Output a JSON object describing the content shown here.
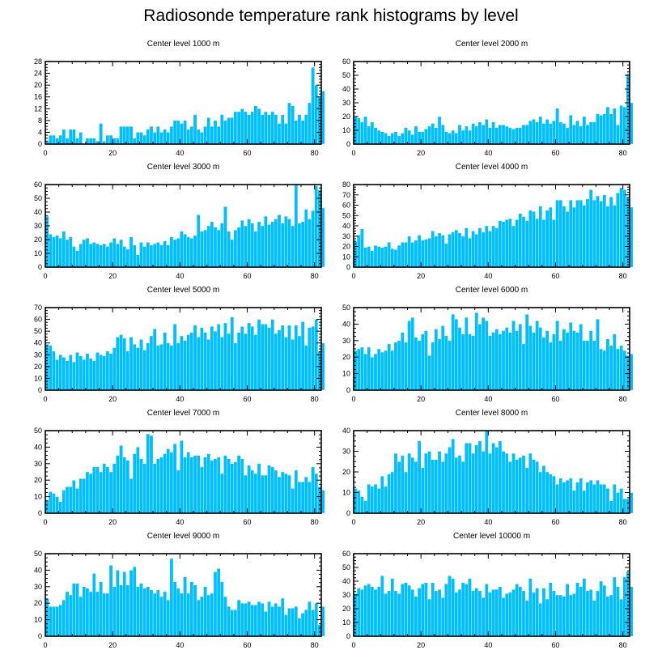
{
  "title": "Radiosonde temperature rank histograms by level",
  "colors": {
    "bar": "#00bfff",
    "axis": "#000000"
  },
  "chart_data": [
    {
      "type": "bar",
      "title": "Center level 1000 m",
      "xlim": [
        0,
        82
      ],
      "xticks": [
        0,
        20,
        40,
        60,
        80
      ],
      "ylim": [
        0,
        28
      ],
      "yticks": [
        0,
        4,
        8,
        12,
        16,
        20,
        24,
        28
      ],
      "values": [
        1,
        3,
        3,
        2,
        3,
        5,
        2,
        5,
        5,
        2,
        4,
        0,
        2,
        2,
        2,
        1,
        7,
        1,
        3,
        3,
        2,
        2,
        6,
        6,
        6,
        6,
        2,
        4,
        4,
        3,
        5,
        6,
        4,
        6,
        4,
        5,
        4,
        6,
        8,
        8,
        7,
        8,
        5,
        6,
        10,
        5,
        4,
        6,
        9,
        6,
        8,
        6,
        10,
        8,
        9,
        9,
        11,
        11,
        12,
        11,
        10,
        11,
        13,
        12,
        10,
        11,
        10,
        11,
        10,
        7,
        10,
        7,
        14,
        13,
        8,
        10,
        8,
        10,
        14,
        26,
        20,
        16,
        18
      ]
    },
    {
      "type": "bar",
      "title": "Center level 2000 m",
      "xlim": [
        0,
        82
      ],
      "xticks": [
        0,
        20,
        40,
        60,
        80
      ],
      "ylim": [
        0,
        60
      ],
      "yticks": [
        0,
        10,
        20,
        30,
        40,
        50,
        60
      ],
      "values": [
        20,
        19,
        16,
        20,
        13,
        16,
        12,
        10,
        9,
        8,
        6,
        8,
        9,
        6,
        8,
        12,
        10,
        7,
        13,
        9,
        9,
        11,
        13,
        15,
        12,
        20,
        14,
        9,
        8,
        10,
        8,
        14,
        10,
        13,
        10,
        15,
        13,
        16,
        14,
        18,
        12,
        16,
        12,
        14,
        14,
        13,
        12,
        11,
        12,
        12,
        14,
        14,
        17,
        18,
        16,
        20,
        15,
        18,
        15,
        17,
        26,
        16,
        15,
        12,
        21,
        14,
        17,
        13,
        20,
        14,
        16,
        16,
        22,
        21,
        22,
        27,
        22,
        26,
        14,
        28,
        27,
        51,
        30
      ]
    },
    {
      "type": "bar",
      "title": "Center level 3000 m",
      "xlim": [
        0,
        82
      ],
      "xticks": [
        0,
        20,
        40,
        60,
        80
      ],
      "ylim": [
        0,
        60
      ],
      "yticks": [
        0,
        10,
        20,
        30,
        40,
        50,
        60
      ],
      "values": [
        37,
        24,
        22,
        23,
        21,
        26,
        20,
        22,
        15,
        12,
        17,
        20,
        21,
        17,
        18,
        17,
        16,
        17,
        15,
        18,
        21,
        17,
        20,
        15,
        13,
        22,
        16,
        9,
        18,
        15,
        18,
        16,
        17,
        18,
        16,
        19,
        16,
        22,
        20,
        21,
        26,
        24,
        22,
        21,
        23,
        38,
        26,
        27,
        30,
        33,
        29,
        27,
        32,
        44,
        26,
        20,
        27,
        29,
        34,
        30,
        35,
        32,
        26,
        33,
        30,
        37,
        31,
        33,
        35,
        38,
        32,
        37,
        35,
        30,
        60,
        32,
        33,
        42,
        35,
        41,
        59,
        56,
        43
      ]
    },
    {
      "type": "bar",
      "title": "Center level 4000 m",
      "xlim": [
        0,
        82
      ],
      "xticks": [
        0,
        20,
        40,
        60,
        80
      ],
      "ylim": [
        0,
        80
      ],
      "yticks": [
        0,
        10,
        20,
        30,
        40,
        50,
        60,
        70,
        80
      ],
      "values": [
        25,
        31,
        37,
        19,
        20,
        16,
        21,
        20,
        19,
        20,
        24,
        18,
        17,
        21,
        24,
        24,
        30,
        24,
        26,
        31,
        26,
        27,
        28,
        35,
        30,
        33,
        31,
        23,
        32,
        34,
        36,
        33,
        30,
        38,
        28,
        35,
        32,
        38,
        34,
        40,
        35,
        40,
        38,
        45,
        44,
        46,
        47,
        40,
        46,
        52,
        49,
        45,
        55,
        54,
        47,
        59,
        46,
        55,
        58,
        46,
        65,
        65,
        59,
        54,
        65,
        58,
        65,
        65,
        60,
        66,
        75,
        65,
        69,
        64,
        70,
        59,
        68,
        60,
        72,
        77,
        75,
        68,
        58
      ]
    },
    {
      "type": "bar",
      "title": "Center level 5000 m",
      "xlim": [
        0,
        82
      ],
      "xticks": [
        0,
        20,
        40,
        60,
        80
      ],
      "ylim": [
        0,
        70
      ],
      "yticks": [
        0,
        10,
        20,
        30,
        40,
        50,
        60,
        70
      ],
      "values": [
        39,
        38,
        33,
        26,
        30,
        28,
        25,
        30,
        24,
        32,
        29,
        26,
        31,
        27,
        25,
        32,
        30,
        29,
        33,
        31,
        36,
        45,
        47,
        44,
        33,
        45,
        39,
        36,
        43,
        34,
        40,
        46,
        52,
        38,
        39,
        49,
        40,
        38,
        56,
        40,
        46,
        42,
        47,
        49,
        55,
        45,
        53,
        49,
        43,
        54,
        50,
        56,
        45,
        57,
        48,
        62,
        40,
        49,
        54,
        48,
        57,
        54,
        47,
        60,
        56,
        56,
        53,
        60,
        48,
        51,
        55,
        45,
        55,
        43,
        55,
        46,
        58,
        38,
        53,
        54,
        60,
        33,
        40
      ]
    },
    {
      "type": "bar",
      "title": "Center level 6000 m",
      "xlim": [
        0,
        82
      ],
      "xticks": [
        0,
        20,
        40,
        60,
        80
      ],
      "ylim": [
        0,
        50
      ],
      "yticks": [
        0,
        10,
        20,
        30,
        40,
        50
      ],
      "values": [
        24,
        25,
        26,
        22,
        26,
        20,
        22,
        25,
        23,
        24,
        28,
        24,
        29,
        30,
        35,
        29,
        42,
        44,
        32,
        30,
        34,
        36,
        21,
        29,
        37,
        31,
        39,
        33,
        30,
        46,
        43,
        38,
        34,
        44,
        34,
        33,
        47,
        40,
        44,
        42,
        33,
        35,
        37,
        34,
        36,
        38,
        35,
        42,
        36,
        40,
        28,
        46,
        39,
        35,
        42,
        38,
        32,
        36,
        29,
        34,
        42,
        30,
        37,
        35,
        41,
        36,
        35,
        40,
        30,
        30,
        36,
        30,
        43,
        25,
        24,
        31,
        27,
        34,
        25,
        27,
        24,
        21,
        22
      ]
    },
    {
      "type": "bar",
      "title": "Center level 7000 m",
      "xlim": [
        0,
        82
      ],
      "xticks": [
        0,
        20,
        40,
        60,
        80
      ],
      "ylim": [
        0,
        50
      ],
      "yticks": [
        0,
        10,
        20,
        30,
        40,
        50
      ],
      "values": [
        8,
        13,
        12,
        10,
        7,
        14,
        16,
        16,
        20,
        15,
        21,
        21,
        25,
        24,
        28,
        28,
        25,
        30,
        28,
        25,
        30,
        35,
        41,
        34,
        32,
        21,
        36,
        40,
        33,
        30,
        48,
        47,
        30,
        33,
        34,
        36,
        39,
        37,
        42,
        26,
        44,
        34,
        37,
        34,
        35,
        35,
        28,
        34,
        36,
        32,
        33,
        34,
        24,
        35,
        33,
        30,
        31,
        35,
        33,
        23,
        29,
        26,
        24,
        30,
        23,
        23,
        29,
        28,
        26,
        22,
        25,
        24,
        23,
        15,
        26,
        19,
        19,
        22,
        19,
        28,
        24,
        16,
        14
      ]
    },
    {
      "type": "bar",
      "title": "Center level 8000 m",
      "xlim": [
        0,
        82
      ],
      "xticks": [
        0,
        20,
        40,
        60,
        80
      ],
      "ylim": [
        0,
        40
      ],
      "yticks": [
        0,
        10,
        20,
        30,
        40
      ],
      "values": [
        12,
        11,
        8,
        6,
        14,
        13,
        14,
        12,
        18,
        13,
        19,
        20,
        29,
        25,
        28,
        20,
        29,
        27,
        25,
        35,
        22,
        29,
        30,
        26,
        26,
        30,
        25,
        29,
        32,
        36,
        27,
        28,
        25,
        34,
        34,
        29,
        33,
        35,
        30,
        40,
        29,
        34,
        32,
        35,
        30,
        29,
        25,
        29,
        26,
        27,
        28,
        22,
        29,
        26,
        25,
        20,
        23,
        20,
        19,
        18,
        14,
        17,
        15,
        16,
        17,
        11,
        15,
        17,
        11,
        15,
        16,
        14,
        16,
        14,
        14,
        12,
        6,
        14,
        10,
        12,
        7,
        7,
        10
      ]
    },
    {
      "type": "bar",
      "title": "Center level 9000 m",
      "xlim": [
        0,
        82
      ],
      "xticks": [
        0,
        20,
        40,
        60,
        80
      ],
      "ylim": [
        0,
        50
      ],
      "yticks": [
        0,
        10,
        20,
        30,
        40,
        50
      ],
      "values": [
        23,
        18,
        18,
        18,
        19,
        22,
        27,
        25,
        32,
        32,
        24,
        30,
        29,
        27,
        38,
        27,
        33,
        26,
        26,
        43,
        30,
        40,
        31,
        39,
        31,
        40,
        42,
        30,
        32,
        29,
        30,
        28,
        26,
        28,
        24,
        27,
        22,
        47,
        33,
        29,
        26,
        36,
        26,
        33,
        31,
        22,
        24,
        30,
        25,
        26,
        39,
        41,
        33,
        24,
        18,
        16,
        16,
        22,
        20,
        20,
        21,
        19,
        19,
        21,
        20,
        15,
        21,
        18,
        20,
        18,
        23,
        13,
        17,
        17,
        18,
        11,
        14,
        16,
        21,
        16,
        20,
        7,
        18
      ]
    },
    {
      "type": "bar",
      "title": "Center level 10000 m",
      "xlim": [
        0,
        82
      ],
      "xticks": [
        0,
        20,
        40,
        60,
        80
      ],
      "ylim": [
        0,
        60
      ],
      "yticks": [
        0,
        10,
        20,
        30,
        40,
        50,
        60
      ],
      "values": [
        31,
        35,
        34,
        37,
        38,
        36,
        34,
        36,
        44,
        31,
        33,
        42,
        33,
        31,
        38,
        39,
        37,
        34,
        29,
        35,
        38,
        39,
        27,
        39,
        33,
        34,
        28,
        38,
        44,
        42,
        32,
        34,
        39,
        38,
        42,
        33,
        35,
        33,
        28,
        38,
        32,
        34,
        34,
        36,
        28,
        31,
        32,
        34,
        38,
        36,
        33,
        26,
        42,
        32,
        35,
        24,
        35,
        27,
        39,
        33,
        30,
        30,
        29,
        38,
        30,
        31,
        39,
        36,
        42,
        33,
        34,
        26,
        33,
        40,
        37,
        29,
        30,
        43,
        36,
        27,
        43,
        47,
        36
      ]
    }
  ]
}
